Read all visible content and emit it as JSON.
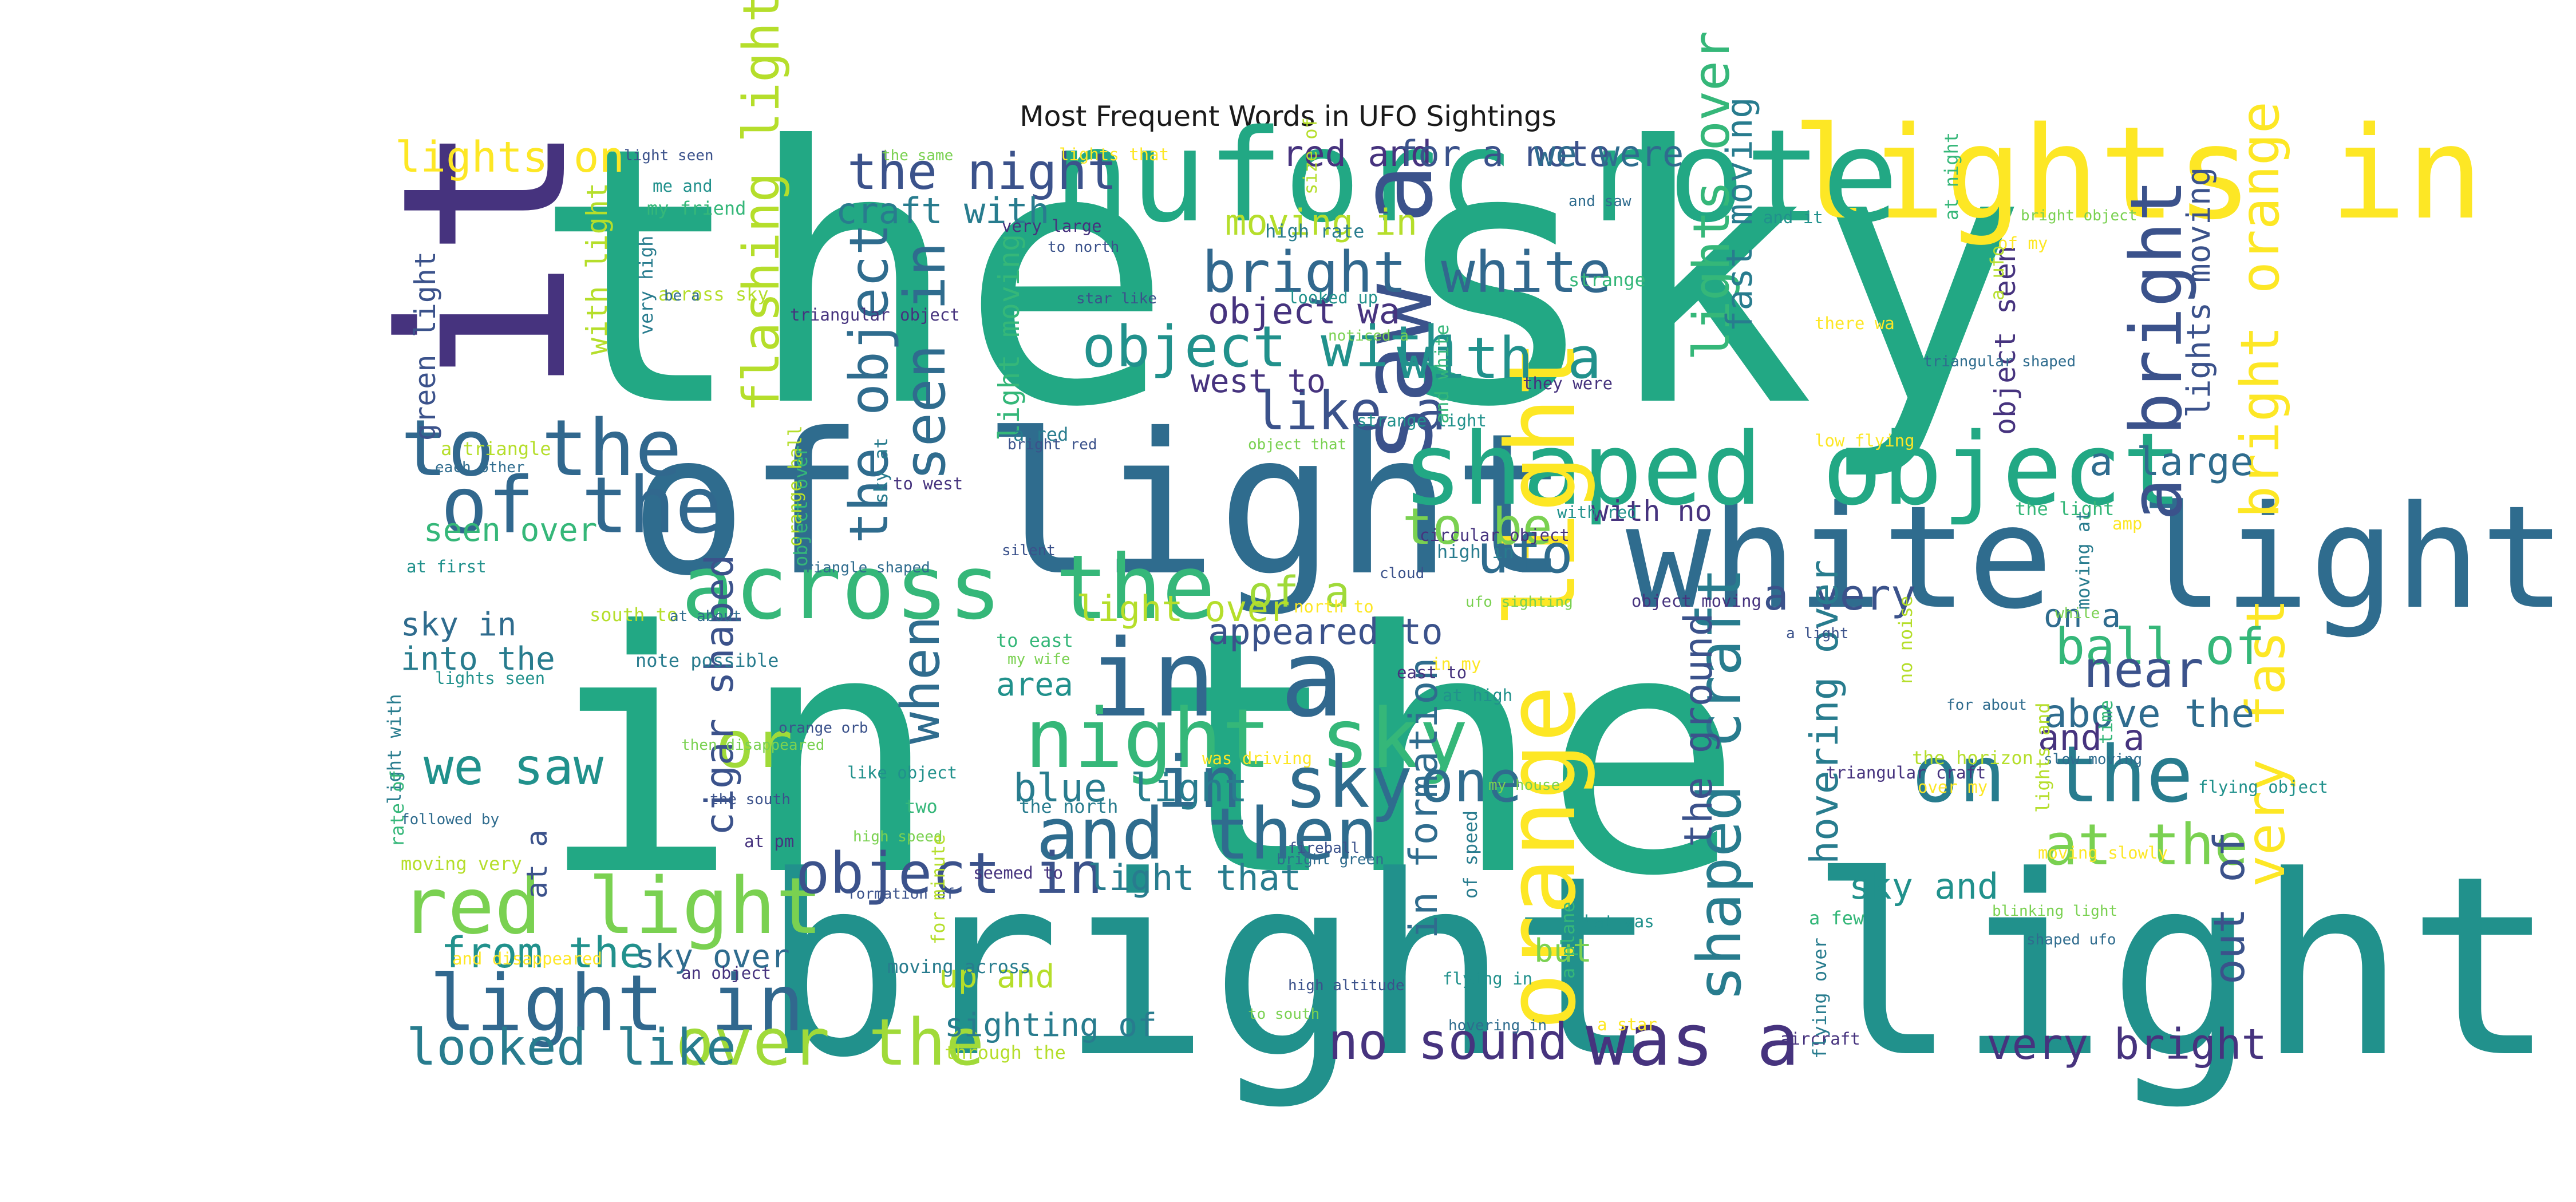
{
  "chart_data": {
    "type": "wordcloud",
    "title": "Most Frequent Words in UFO Sightings",
    "words": [
      {
        "text": "the sky",
        "weight": 100,
        "color": "#22a884",
        "rotate": 0
      },
      {
        "text": "in the",
        "weight": 94,
        "color": "#22a884",
        "rotate": 0
      },
      {
        "text": "bright light",
        "weight": 70,
        "color": "#21918c",
        "rotate": 0
      },
      {
        "text": "it wa",
        "weight": 64,
        "color": "#46337e",
        "rotate": -90
      },
      {
        "text": "of light",
        "weight": 55,
        "color": "#2f6c8e",
        "rotate": 0
      },
      {
        "text": "white light",
        "weight": 40,
        "color": "#2f6c8e",
        "rotate": 0
      },
      {
        "text": "lights in",
        "weight": 36,
        "color": "#fde725",
        "rotate": 0
      },
      {
        "text": "nuforc note",
        "weight": 36,
        "color": "#22a884",
        "rotate": 0
      },
      {
        "text": "saw a",
        "weight": 28,
        "color": "#3b528b",
        "rotate": -90
      },
      {
        "text": "shaped object",
        "weight": 28,
        "color": "#22a884",
        "rotate": 0
      },
      {
        "text": "across the",
        "weight": 25,
        "color": "#35b779",
        "rotate": 0
      },
      {
        "text": "in a",
        "weight": 30,
        "color": "#31688e",
        "rotate": 0
      },
      {
        "text": "orange light",
        "weight": 27,
        "color": "#fde725",
        "rotate": -90
      },
      {
        "text": "night sky",
        "weight": 23,
        "color": "#35b779",
        "rotate": 0
      },
      {
        "text": "to the",
        "weight": 22,
        "color": "#31688e",
        "rotate": 0
      },
      {
        "text": "of the",
        "weight": 22,
        "color": "#31688e",
        "rotate": 0
      },
      {
        "text": "on the",
        "weight": 22,
        "color": "#287c8e",
        "rotate": 0
      },
      {
        "text": "red light",
        "weight": 22,
        "color": "#7ad151",
        "rotate": 0
      },
      {
        "text": "light in",
        "weight": 22,
        "color": "#31688e",
        "rotate": 0
      },
      {
        "text": "and then",
        "weight": 20,
        "color": "#2f6c8e",
        "rotate": 0
      },
      {
        "text": "in sky",
        "weight": 20,
        "color": "#2f6c8e",
        "rotate": 0
      },
      {
        "text": "was a",
        "weight": 20,
        "color": "#46337e",
        "rotate": 0
      },
      {
        "text": "a bright",
        "weight": 20,
        "color": "#3b528b",
        "rotate": -90
      },
      {
        "text": "bright white",
        "weight": 16,
        "color": "#31688e",
        "rotate": 0
      },
      {
        "text": "object with",
        "weight": 16,
        "color": "#21918c",
        "rotate": 0
      },
      {
        "text": "with a",
        "weight": 16,
        "color": "#21918c",
        "rotate": 0
      },
      {
        "text": "object in",
        "weight": 16,
        "color": "#3b528b",
        "rotate": 0
      },
      {
        "text": "over the",
        "weight": 18,
        "color": "#a0da39",
        "rotate": 0
      },
      {
        "text": "shaped craft",
        "weight": 17,
        "color": "#287c8e",
        "rotate": -90
      },
      {
        "text": "seen in",
        "weight": 16,
        "color": "#2f6c8e",
        "rotate": -90
      },
      {
        "text": "the object",
        "weight": 15,
        "color": "#2f6c8e",
        "rotate": -90
      },
      {
        "text": "one",
        "weight": 16,
        "color": "#2f6c8e",
        "rotate": 0
      },
      {
        "text": "or",
        "weight": 18,
        "color": "#a0da39",
        "rotate": 0
      },
      {
        "text": "when",
        "weight": 15,
        "color": "#2f6c8e",
        "rotate": -90
      },
      {
        "text": "bright orange",
        "weight": 15,
        "color": "#fde725",
        "rotate": -90
      },
      {
        "text": "very fast",
        "weight": 15,
        "color": "#fde725",
        "rotate": -90
      },
      {
        "text": "at the",
        "weight": 16,
        "color": "#7ad151",
        "rotate": 0
      },
      {
        "text": "like a",
        "weight": 15,
        "color": "#3b528b",
        "rotate": 0
      },
      {
        "text": "the night",
        "weight": 14,
        "color": "#3b528b",
        "rotate": 0
      },
      {
        "text": "flashing light",
        "weight": 14,
        "color": "#b5de2b",
        "rotate": -90
      },
      {
        "text": "lights over",
        "weight": 14,
        "color": "#35b779",
        "rotate": -90
      },
      {
        "text": "looked like",
        "weight": 14,
        "color": "#287c8e",
        "rotate": 0
      },
      {
        "text": "no sound",
        "weight": 14,
        "color": "#46337e",
        "rotate": 0
      },
      {
        "text": "ball of",
        "weight": 14,
        "color": "#35b779",
        "rotate": 0
      },
      {
        "text": "we saw",
        "weight": 14,
        "color": "#21918c",
        "rotate": 0
      },
      {
        "text": "to be",
        "weight": 14,
        "color": "#7ad151",
        "rotate": 0
      },
      {
        "text": "ufo",
        "weight": 15,
        "color": "#2f6c8e",
        "rotate": 0
      },
      {
        "text": "from the",
        "weight": 12,
        "color": "#21918c",
        "rotate": 0
      },
      {
        "text": "very bright",
        "weight": 12,
        "color": "#46337e",
        "rotate": 0
      },
      {
        "text": "near",
        "weight": 14,
        "color": "#3b528b",
        "rotate": 0
      },
      {
        "text": "a very",
        "weight": 12,
        "color": "#3b528b",
        "rotate": 0
      },
      {
        "text": "of a",
        "weight": 12,
        "color": "#a0da39",
        "rotate": 0
      },
      {
        "text": "lights on",
        "weight": 12,
        "color": "#fde725",
        "rotate": 0
      },
      {
        "text": "a large",
        "weight": 11,
        "color": "#2f6c8e",
        "rotate": 0
      },
      {
        "text": "out of",
        "weight": 12,
        "color": "#3b528b",
        "rotate": -90
      },
      {
        "text": "the ground",
        "weight": 11,
        "color": "#3b528b",
        "rotate": -90
      },
      {
        "text": "hovering over",
        "weight": 11,
        "color": "#287c8e",
        "rotate": -90
      },
      {
        "text": "in formation",
        "weight": 11,
        "color": "#2f6c8e",
        "rotate": -90
      },
      {
        "text": "blue light",
        "weight": 11,
        "color": "#287c8e",
        "rotate": 0
      },
      {
        "text": "above the",
        "weight": 11,
        "color": "#2f6c8e",
        "rotate": 0
      },
      {
        "text": "cigar shaped",
        "weight": 11,
        "color": "#3b528b",
        "rotate": -90
      },
      {
        "text": "fast moving",
        "weight": 10,
        "color": "#287c8e",
        "rotate": -90
      },
      {
        "text": "lights moving",
        "weight": 9,
        "color": "#3b528b",
        "rotate": -90
      },
      {
        "text": "light over",
        "weight": 10,
        "color": "#b5de2b",
        "rotate": 0
      },
      {
        "text": "appeared to",
        "weight": 10,
        "color": "#3b528b",
        "rotate": 0
      },
      {
        "text": "craft with",
        "weight": 10,
        "color": "#287c8e",
        "rotate": 0
      },
      {
        "text": "moving in",
        "weight": 10,
        "color": "#b5de2b",
        "rotate": 0
      },
      {
        "text": "red and",
        "weight": 10,
        "color": "#46337e",
        "rotate": 0
      },
      {
        "text": "for a note",
        "weight": 10,
        "color": "#3b528b",
        "rotate": 0
      },
      {
        "text": "we were",
        "weight": 10,
        "color": "#2f6c8e",
        "rotate": 0
      },
      {
        "text": "object wa",
        "weight": 10,
        "color": "#46337e",
        "rotate": 0
      },
      {
        "text": "west to",
        "weight": 9,
        "color": "#46337e",
        "rotate": 0
      },
      {
        "text": "light that",
        "weight": 10,
        "color": "#287c8e",
        "rotate": 0
      },
      {
        "text": "sky and",
        "weight": 10,
        "color": "#21918c",
        "rotate": 0
      },
      {
        "text": "sky over",
        "weight": 9,
        "color": "#2f6c8e",
        "rotate": 0
      },
      {
        "text": "sighting of",
        "weight": 9,
        "color": "#287c8e",
        "rotate": 0
      },
      {
        "text": "up and",
        "weight": 9,
        "color": "#b5de2b",
        "rotate": 0
      },
      {
        "text": "but",
        "weight": 9,
        "color": "#7ad151",
        "rotate": 0
      },
      {
        "text": "area",
        "weight": 9,
        "color": "#21918c",
        "rotate": 0
      },
      {
        "text": "and a",
        "weight": 10,
        "color": "#46337e",
        "rotate": 0
      },
      {
        "text": "on a",
        "weight": 9,
        "color": "#2f6c8e",
        "rotate": 0
      },
      {
        "text": "into the",
        "weight": 9,
        "color": "#287c8e",
        "rotate": 0
      },
      {
        "text": "sky in",
        "weight": 9,
        "color": "#2f6c8e",
        "rotate": 0
      },
      {
        "text": "seen over",
        "weight": 9,
        "color": "#35b779",
        "rotate": 0
      },
      {
        "text": "with no",
        "weight": 8,
        "color": "#46337e",
        "rotate": 0
      },
      {
        "text": "green light",
        "weight": 8,
        "color": "#3b528b",
        "rotate": -90
      },
      {
        "text": "with light",
        "weight": 8,
        "color": "#b5de2b",
        "rotate": -90
      },
      {
        "text": "light moving",
        "weight": 8,
        "color": "#35b779",
        "rotate": -90
      },
      {
        "text": "object seen",
        "weight": 8,
        "color": "#46337e",
        "rotate": -90
      },
      {
        "text": "at a",
        "weight": 8,
        "color": "#3b528b",
        "rotate": -90
      }
    ],
    "minor_words": [
      "light seen",
      "me and",
      "my friend",
      "the same",
      "lights that",
      "size of",
      "and saw",
      "very large",
      "high rate",
      "to north",
      "and it",
      "at night",
      "bright object",
      "of my",
      "across sky",
      "be a",
      "triangular object",
      "very high",
      "star like",
      "looked up",
      "strange",
      "noticed a",
      "there wa",
      "a ufo",
      "triangular shaped",
      "they were",
      "a red",
      "bright red",
      "strange light",
      "and white",
      "object that",
      "low flying",
      "a triangle",
      "each other",
      "to west",
      "sky at",
      "silent",
      "with red",
      "the light",
      "while",
      "amp",
      "orange ball",
      "triangle shaped",
      "circular object",
      "high in",
      "cloud",
      "at first",
      "object over",
      "ufo sighting",
      "north to",
      "south to",
      "at about",
      "object moving",
      "moving at",
      "a light",
      "lights seen",
      "to east",
      "my wife",
      "in my",
      "no noise",
      "for about",
      "east to",
      "note possible",
      "orange orb",
      "at high",
      "time",
      "then disappeared",
      "was driving",
      "the horizon",
      "slow moving",
      "triangular craft",
      "light with",
      "the south",
      "like object",
      "two",
      "my house",
      "over my",
      "lights and",
      "followed by",
      "at pm",
      "the north",
      "fireball",
      "flying object",
      "rate of",
      "high speed",
      "moving slowly",
      "moving very",
      "bright green",
      "seemed to",
      "of speed",
      "formation of",
      "that was",
      "a few",
      "blinking light",
      "and disappeared",
      "for minute",
      "shaped ufo",
      "an object",
      "moving across",
      "high altitude",
      "flying in",
      "a plane",
      "to south",
      "a star",
      "through the",
      "hovering in",
      "aircraft",
      "flying over"
    ]
  }
}
